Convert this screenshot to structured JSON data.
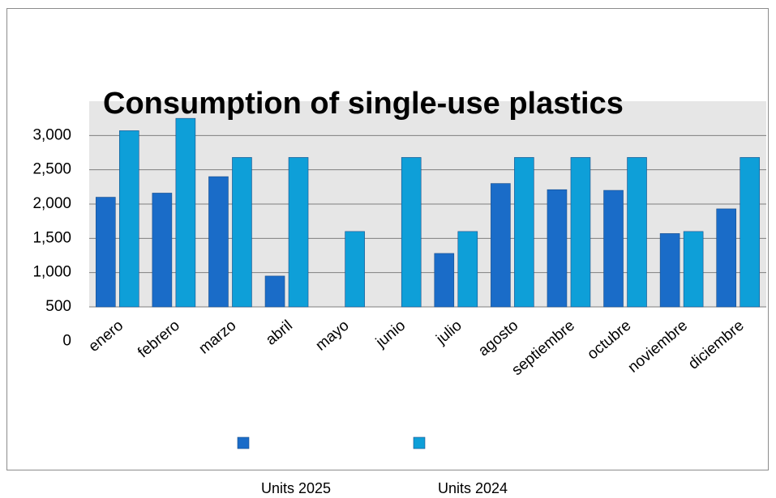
{
  "chart_data": {
    "type": "bar",
    "title": "Consumption of single-use plastics",
    "categories": [
      "enero",
      "febrero",
      "marzo",
      "abril",
      "mayo",
      "junio",
      "julio",
      "agosto",
      "septiembre",
      "octubre",
      "noviembre",
      "diciembre"
    ],
    "series": [
      {
        "name": "Units 2025",
        "color": "#1a6cc8",
        "values": [
          2100,
          2160,
          2400,
          950,
          null,
          null,
          1280,
          2300,
          2210,
          2200,
          1570,
          1930
        ]
      },
      {
        "name": "Units 2024",
        "color": "#0e9fd8",
        "values": [
          3070,
          3250,
          2680,
          2680,
          1600,
          2680,
          1600,
          2680,
          2680,
          2680,
          1600,
          2680
        ]
      }
    ],
    "ylim": [
      500,
      3500
    ],
    "yticks": [
      0,
      500,
      {
        "value": 1000,
        "label": "1,000"
      },
      {
        "value": 1500,
        "label": "1,500"
      },
      {
        "value": 2000,
        "label": "2,000"
      },
      {
        "value": 2500,
        "label": "2,500"
      },
      {
        "value": 3000,
        "label": "3,000"
      }
    ],
    "grid": true
  }
}
